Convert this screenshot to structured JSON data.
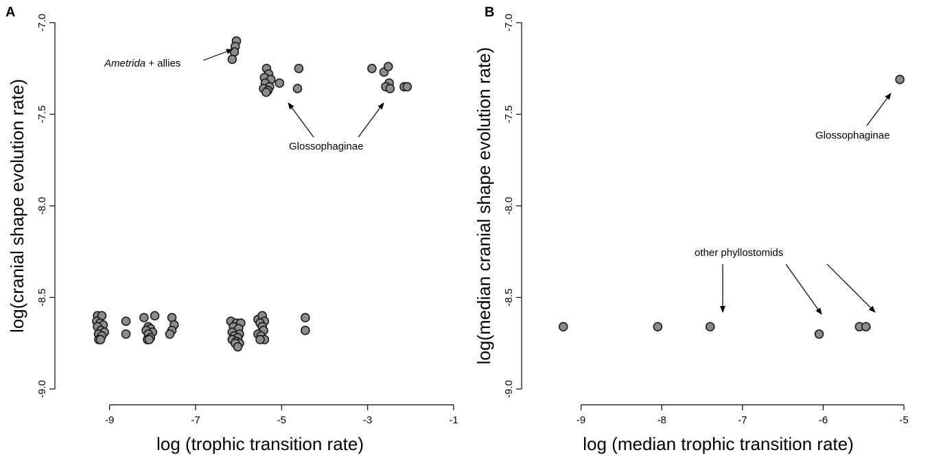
{
  "chart_data": [
    {
      "panel": "A",
      "type": "scatter",
      "xlabel": "log (trophic transition rate)",
      "ylabel": "log(cranial shape evolution rate)",
      "xlim": [
        -10,
        -1
      ],
      "ylim": [
        -9.1,
        -6.95
      ],
      "xticks": [
        "-9",
        "-7",
        "-5",
        "-3",
        "-1"
      ],
      "yticks": [
        "-7.0",
        "-7.5",
        "-8.0",
        "-8.5",
        "-9.0"
      ],
      "annotations": [
        {
          "italic": "Ametrida",
          "text": " + allies"
        },
        {
          "text": "Glossophaginae"
        }
      ],
      "points": [
        [
          -6.05,
          -7.1
        ],
        [
          -6.08,
          -7.13
        ],
        [
          -6.1,
          -7.16
        ],
        [
          -6.15,
          -7.2
        ],
        [
          -5.35,
          -7.25
        ],
        [
          -5.3,
          -7.28
        ],
        [
          -5.4,
          -7.3
        ],
        [
          -5.25,
          -7.31
        ],
        [
          -5.38,
          -7.33
        ],
        [
          -5.05,
          -7.33
        ],
        [
          -5.28,
          -7.35
        ],
        [
          -5.42,
          -7.36
        ],
        [
          -5.32,
          -7.37
        ],
        [
          -5.36,
          -7.38
        ],
        [
          -4.6,
          -7.25
        ],
        [
          -4.63,
          -7.36
        ],
        [
          -2.9,
          -7.25
        ],
        [
          -2.62,
          -7.27
        ],
        [
          -2.52,
          -7.24
        ],
        [
          -2.5,
          -7.33
        ],
        [
          -2.58,
          -7.35
        ],
        [
          -2.48,
          -7.36
        ],
        [
          -2.15,
          -7.35
        ],
        [
          -2.08,
          -7.35
        ],
        [
          -9.28,
          -8.6
        ],
        [
          -9.18,
          -8.6
        ],
        [
          -9.3,
          -8.63
        ],
        [
          -9.22,
          -8.64
        ],
        [
          -9.15,
          -8.65
        ],
        [
          -9.28,
          -8.66
        ],
        [
          -9.2,
          -8.68
        ],
        [
          -9.12,
          -8.69
        ],
        [
          -9.26,
          -8.7
        ],
        [
          -9.18,
          -8.71
        ],
        [
          -9.25,
          -8.73
        ],
        [
          -9.21,
          -8.73
        ],
        [
          -8.62,
          -8.63
        ],
        [
          -8.62,
          -8.7
        ],
        [
          -8.2,
          -8.61
        ],
        [
          -7.95,
          -8.6
        ],
        [
          -8.1,
          -8.66
        ],
        [
          -8.05,
          -8.67
        ],
        [
          -8.15,
          -8.68
        ],
        [
          -8.0,
          -8.69
        ],
        [
          -8.1,
          -8.7
        ],
        [
          -8.05,
          -8.72
        ],
        [
          -8.12,
          -8.73
        ],
        [
          -8.08,
          -8.73
        ],
        [
          -7.55,
          -8.61
        ],
        [
          -7.5,
          -8.65
        ],
        [
          -7.55,
          -8.68
        ],
        [
          -7.6,
          -8.7
        ],
        [
          -6.18,
          -8.63
        ],
        [
          -6.05,
          -8.64
        ],
        [
          -5.95,
          -8.64
        ],
        [
          -6.12,
          -8.66
        ],
        [
          -6.0,
          -8.67
        ],
        [
          -6.15,
          -8.69
        ],
        [
          -5.98,
          -8.7
        ],
        [
          -6.1,
          -8.71
        ],
        [
          -6.02,
          -8.72
        ],
        [
          -6.15,
          -8.73
        ],
        [
          -6.05,
          -8.74
        ],
        [
          -5.98,
          -8.75
        ],
        [
          -6.08,
          -8.75
        ],
        [
          -6.02,
          -8.77
        ],
        [
          -5.55,
          -8.62
        ],
        [
          -5.45,
          -8.6
        ],
        [
          -5.4,
          -8.63
        ],
        [
          -5.5,
          -8.64
        ],
        [
          -5.45,
          -8.66
        ],
        [
          -5.42,
          -8.68
        ],
        [
          -5.55,
          -8.7
        ],
        [
          -5.48,
          -8.71
        ],
        [
          -5.4,
          -8.73
        ],
        [
          -5.5,
          -8.73
        ],
        [
          -4.45,
          -8.61
        ],
        [
          -4.45,
          -8.68
        ]
      ]
    },
    {
      "panel": "B",
      "type": "scatter",
      "xlabel": "log (median trophic transition rate)",
      "ylabel": "log(median cranial shape evolution rate)",
      "xlim": [
        -9.6,
        -5.0
      ],
      "ylim": [
        -9.1,
        -6.95
      ],
      "xticks": [
        "-9",
        "-8",
        "-7",
        "-6",
        "-5"
      ],
      "yticks": [
        "-7.0",
        "-7.5",
        "-8.0",
        "-8.5",
        "-9.0"
      ],
      "annotations": [
        {
          "text": "Glossophaginae"
        },
        {
          "text": "other phyllostomids"
        }
      ],
      "points": [
        [
          -9.22,
          -8.66
        ],
        [
          -8.05,
          -8.66
        ],
        [
          -7.4,
          -8.66
        ],
        [
          -6.05,
          -8.7
        ],
        [
          -5.55,
          -8.66
        ],
        [
          -5.47,
          -8.66
        ],
        [
          -5.05,
          -7.31
        ]
      ]
    }
  ]
}
